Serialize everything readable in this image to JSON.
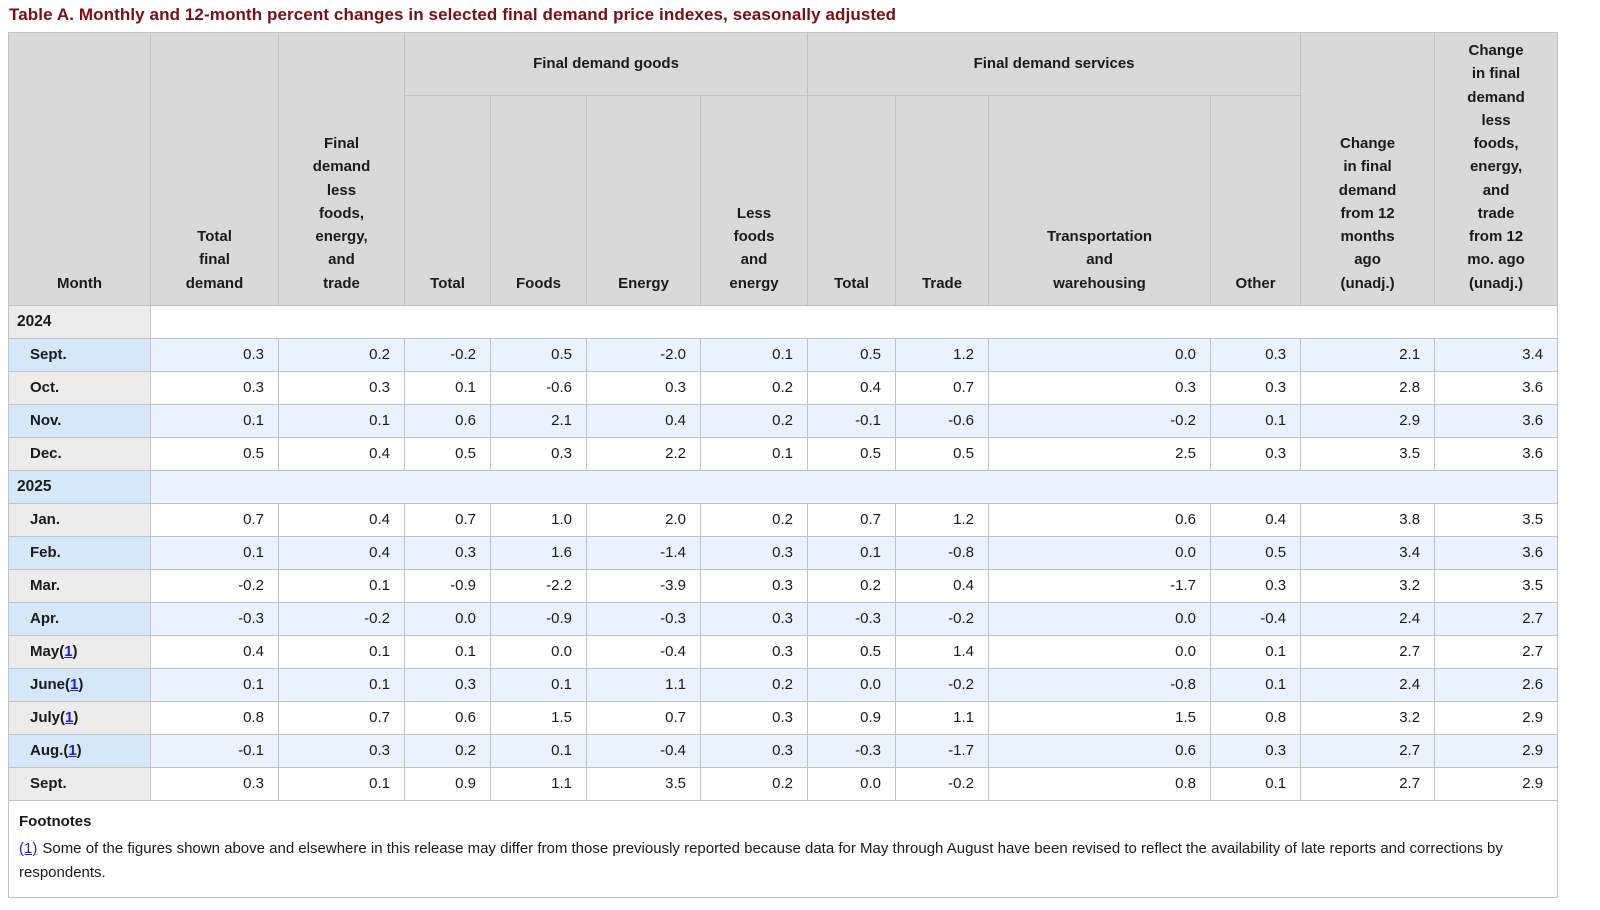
{
  "page_title": "Table A. Monthly and 12-month percent changes in selected final demand price indexes, seasonally adjusted",
  "colors": {
    "title": "#7a0e10",
    "header_bg": "#d9d9d9",
    "row_blue_bg": "#eaf2fd",
    "row_blue_month_bg": "#d6e7fa",
    "row_white_bg": "#ffffff",
    "row_white_month_bg": "#ececec",
    "border": "#c2c2c2",
    "link": "#2222cc"
  },
  "chart_data": {
    "type": "table",
    "title": "Table A. Monthly and 12-month percent changes in selected final demand price indexes, seasonally adjusted",
    "header": {
      "month": "Month",
      "total_final_demand": "Total\nfinal\ndemand",
      "less_fet": "Final\ndemand\nless\nfoods,\nenergy,\nand\ntrade",
      "goods_group": "Final demand goods",
      "services_group": "Final demand services",
      "goods_total": "Total",
      "foods": "Foods",
      "energy": "Energy",
      "less_foods_energy": "Less\nfoods\nand\nenergy",
      "services_total": "Total",
      "trade": "Trade",
      "transportation": "Transportation\nand\nwarehousing",
      "other": "Other",
      "change_12mo": "Change\nin final\ndemand\nfrom 12\nmonths\nago\n(unadj.)",
      "change_less_fet_12mo": "Change\nin final\ndemand\nless\nfoods,\nenergy,\nand\ntrade\nfrom 12\nmo. ago\n(unadj.)"
    },
    "columns": [
      "Month",
      "Total final demand",
      "Final demand less foods, energy, and trade",
      "Final demand goods: Total",
      "Final demand goods: Foods",
      "Final demand goods: Energy",
      "Final demand goods: Less foods and energy",
      "Final demand services: Total",
      "Final demand services: Trade",
      "Final demand services: Transportation and warehousing",
      "Final demand services: Other",
      "Change in final demand from 12 months ago (unadj.)",
      "Change in final demand less foods, energy, and trade from 12 mo. ago (unadj.)"
    ],
    "rows": [
      {
        "type": "year",
        "label": "2024",
        "footnote_ref": null,
        "shade": "white",
        "values": []
      },
      {
        "type": "month",
        "label": "Sept.",
        "footnote_ref": null,
        "shade": "blue",
        "values": [
          "0.3",
          "0.2",
          "-0.2",
          "0.5",
          "-2.0",
          "0.1",
          "0.5",
          "1.2",
          "0.0",
          "0.3",
          "2.1",
          "3.4"
        ]
      },
      {
        "type": "month",
        "label": "Oct.",
        "footnote_ref": null,
        "shade": "white",
        "values": [
          "0.3",
          "0.3",
          "0.1",
          "-0.6",
          "0.3",
          "0.2",
          "0.4",
          "0.7",
          "0.3",
          "0.3",
          "2.8",
          "3.6"
        ]
      },
      {
        "type": "month",
        "label": "Nov.",
        "footnote_ref": null,
        "shade": "blue",
        "values": [
          "0.1",
          "0.1",
          "0.6",
          "2.1",
          "0.4",
          "0.2",
          "-0.1",
          "-0.6",
          "-0.2",
          "0.1",
          "2.9",
          "3.6"
        ]
      },
      {
        "type": "month",
        "label": "Dec.",
        "footnote_ref": null,
        "shade": "white",
        "values": [
          "0.5",
          "0.4",
          "0.5",
          "0.3",
          "2.2",
          "0.1",
          "0.5",
          "0.5",
          "2.5",
          "0.3",
          "3.5",
          "3.6"
        ]
      },
      {
        "type": "year",
        "label": "2025",
        "footnote_ref": null,
        "shade": "blue",
        "values": []
      },
      {
        "type": "month",
        "label": "Jan.",
        "footnote_ref": null,
        "shade": "white",
        "values": [
          "0.7",
          "0.4",
          "0.7",
          "1.0",
          "2.0",
          "0.2",
          "0.7",
          "1.2",
          "0.6",
          "0.4",
          "3.8",
          "3.5"
        ]
      },
      {
        "type": "month",
        "label": "Feb.",
        "footnote_ref": null,
        "shade": "blue",
        "values": [
          "0.1",
          "0.4",
          "0.3",
          "1.6",
          "-1.4",
          "0.3",
          "0.1",
          "-0.8",
          "0.0",
          "0.5",
          "3.4",
          "3.6"
        ]
      },
      {
        "type": "month",
        "label": "Mar.",
        "footnote_ref": null,
        "shade": "white",
        "values": [
          "-0.2",
          "0.1",
          "-0.9",
          "-2.2",
          "-3.9",
          "0.3",
          "0.2",
          "0.4",
          "-1.7",
          "0.3",
          "3.2",
          "3.5"
        ]
      },
      {
        "type": "month",
        "label": "Apr.",
        "footnote_ref": null,
        "shade": "blue",
        "values": [
          "-0.3",
          "-0.2",
          "0.0",
          "-0.9",
          "-0.3",
          "0.3",
          "-0.3",
          "-0.2",
          "0.0",
          "-0.4",
          "2.4",
          "2.7"
        ]
      },
      {
        "type": "month",
        "label": "May",
        "footnote_ref": "1",
        "shade": "white",
        "values": [
          "0.4",
          "0.1",
          "0.1",
          "0.0",
          "-0.4",
          "0.3",
          "0.5",
          "1.4",
          "0.0",
          "0.1",
          "2.7",
          "2.7"
        ]
      },
      {
        "type": "month",
        "label": "June",
        "footnote_ref": "1",
        "shade": "blue",
        "values": [
          "0.1",
          "0.1",
          "0.3",
          "0.1",
          "1.1",
          "0.2",
          "0.0",
          "-0.2",
          "-0.8",
          "0.1",
          "2.4",
          "2.6"
        ]
      },
      {
        "type": "month",
        "label": "July",
        "footnote_ref": "1",
        "shade": "white",
        "values": [
          "0.8",
          "0.7",
          "0.6",
          "1.5",
          "0.7",
          "0.3",
          "0.9",
          "1.1",
          "1.5",
          "0.8",
          "3.2",
          "2.9"
        ]
      },
      {
        "type": "month",
        "label": "Aug.",
        "footnote_ref": "1",
        "shade": "blue",
        "values": [
          "-0.1",
          "0.3",
          "0.2",
          "0.1",
          "-0.4",
          "0.3",
          "-0.3",
          "-1.7",
          "0.6",
          "0.3",
          "2.7",
          "2.9"
        ]
      },
      {
        "type": "month",
        "label": "Sept.",
        "footnote_ref": null,
        "shade": "white",
        "values": [
          "0.3",
          "0.1",
          "0.9",
          "1.1",
          "3.5",
          "0.2",
          "0.0",
          "-0.2",
          "0.8",
          "0.1",
          "2.7",
          "2.9"
        ]
      }
    ]
  },
  "footnotes": {
    "heading": "Footnotes",
    "items": [
      {
        "ref": "(1)",
        "text": "Some of the figures shown above and elsewhere in this release may differ from those previously reported because data for May through August have been revised to reflect the availability of late reports and corrections by respondents."
      }
    ]
  }
}
